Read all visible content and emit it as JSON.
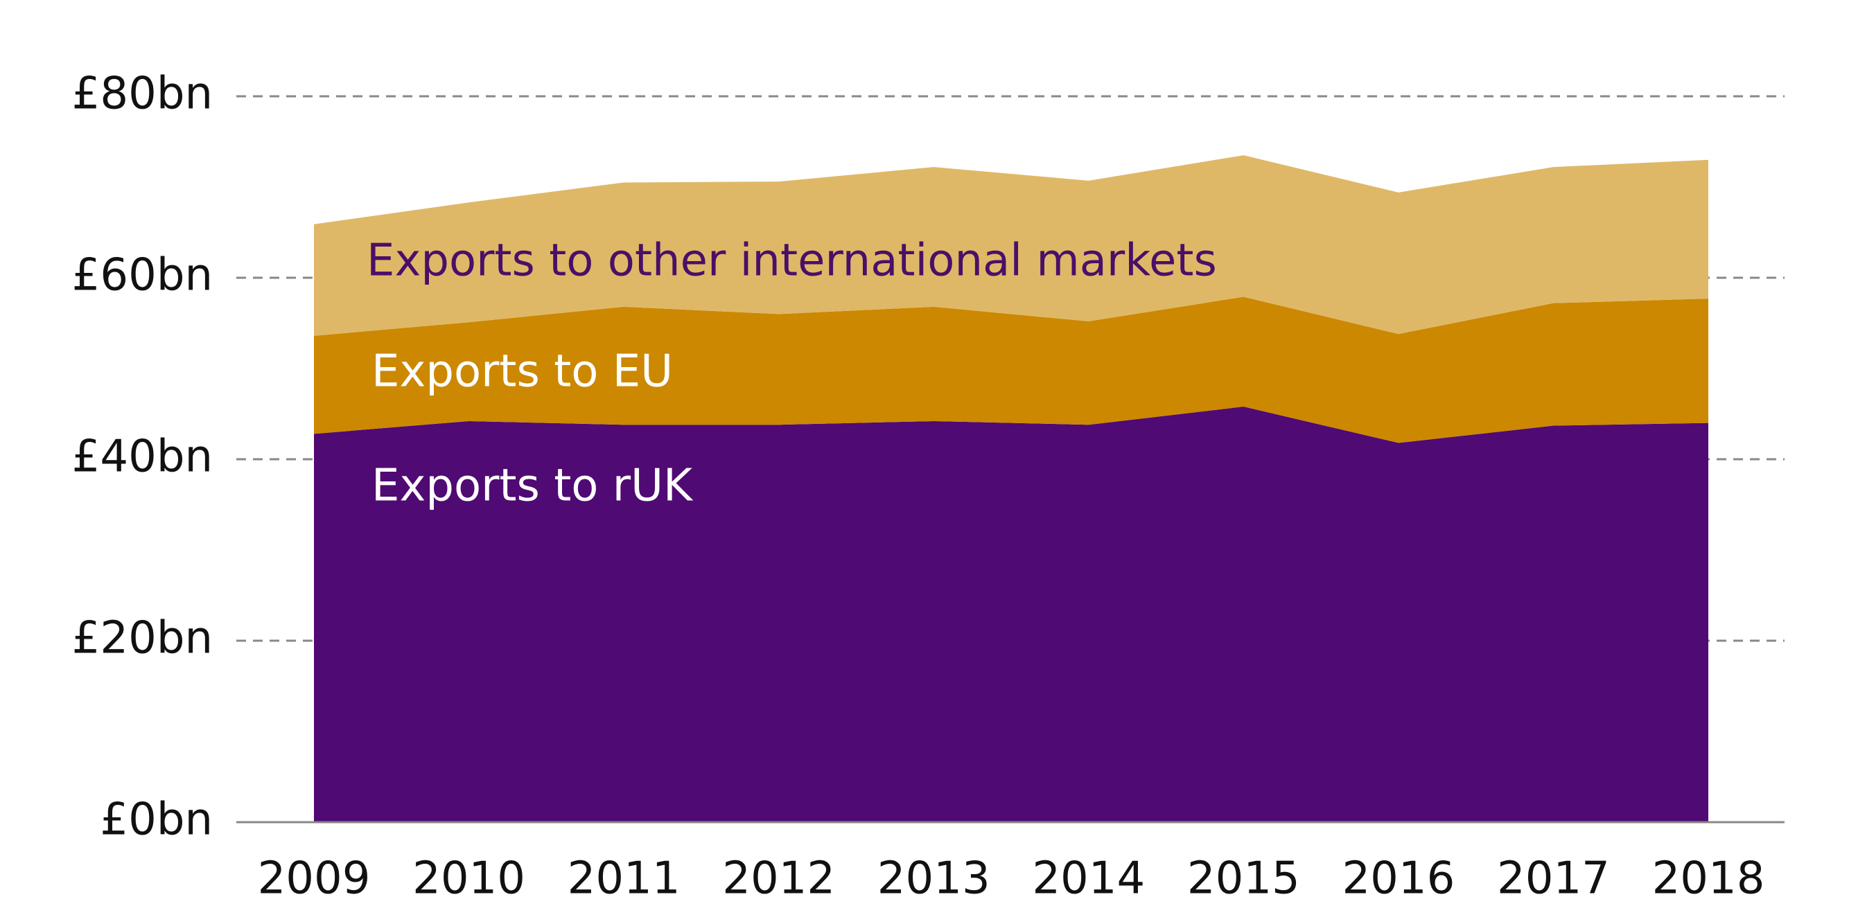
{
  "chart_data": {
    "type": "stacked-area",
    "categories": [
      "2009",
      "2010",
      "2011",
      "2012",
      "2013",
      "2014",
      "2015",
      "2016",
      "2017",
      "2018"
    ],
    "series": [
      {
        "name": "Exports to rUK",
        "color": "#500a73",
        "label_color": "#ffffff",
        "values": [
          42.8,
          44.2,
          43.8,
          43.8,
          44.2,
          43.8,
          45.8,
          41.8,
          43.7,
          44.0
        ]
      },
      {
        "name": "Exports to EU",
        "color": "#cc8800",
        "label_color": "#ffffff",
        "values": [
          10.8,
          10.9,
          13.0,
          12.2,
          12.6,
          11.4,
          12.1,
          12.0,
          13.5,
          13.7
        ]
      },
      {
        "name": "Exports to other international markets",
        "color": "#dfb867",
        "label_color": "#4a0f68",
        "values": [
          12.3,
          13.2,
          13.7,
          14.6,
          15.4,
          15.5,
          15.6,
          15.6,
          15.0,
          15.3
        ]
      }
    ],
    "ylim": [
      0,
      80
    ],
    "yticks": [
      {
        "value": 0,
        "label": "£0bn"
      },
      {
        "value": 20,
        "label": "£20bn"
      },
      {
        "value": 40,
        "label": "£40bn"
      },
      {
        "value": 60,
        "label": "£60bn"
      },
      {
        "value": 80,
        "label": "£80bn"
      }
    ],
    "grid": true
  }
}
